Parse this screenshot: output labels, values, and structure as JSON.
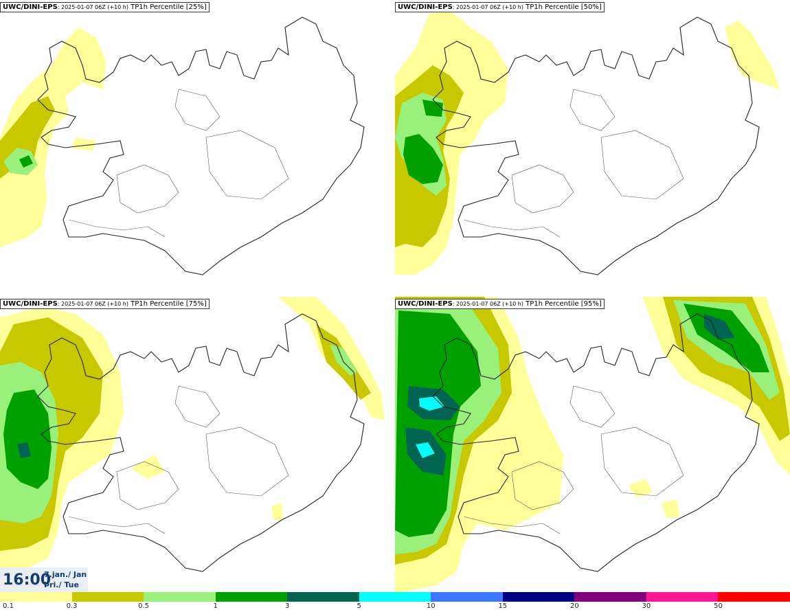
{
  "panels": [
    {
      "model": "UWC/DINI-EPS",
      "run": ": 2025-01-07 06Z (+10 h)",
      "field": " TP1h Percentile [25%]"
    },
    {
      "model": "UWC/DINI-EPS",
      "run": ": 2025-01-07 06Z (+10 h)",
      "field": " TP1h Percentile [50%]"
    },
    {
      "model": "UWC/DINI-EPS",
      "run": ": 2025-01-07 06Z (+10 h)",
      "field": " TP1h Percentile [75%]"
    },
    {
      "model": "UWC/DINI-EPS",
      "run": ": 2025-01-07 06Z (+10 h)",
      "field": " TP1h Percentile [95%]"
    }
  ],
  "time": {
    "hour": "16:00",
    "date": "7.jan./ Jan",
    "weekday": "Þri./ Tue"
  },
  "legend": {
    "colors": [
      "#ffff99",
      "#c8c800",
      "#99f07a",
      "#00a000",
      "#006450",
      "#00ffff",
      "#3c78ff",
      "#000080",
      "#800080",
      "#ff1493",
      "#ff0000"
    ],
    "labels": [
      "0.1",
      "0.3",
      "0.5",
      "1",
      "3",
      "5",
      "10",
      "15",
      "20",
      "30",
      "50"
    ]
  },
  "colors": {
    "light": "#ffff99",
    "olive": "#c8c800",
    "lightgreen": "#99f07a",
    "green": "#00a000",
    "darkgreen": "#006450",
    "cyan": "#00ffff",
    "coast": "#222222"
  }
}
